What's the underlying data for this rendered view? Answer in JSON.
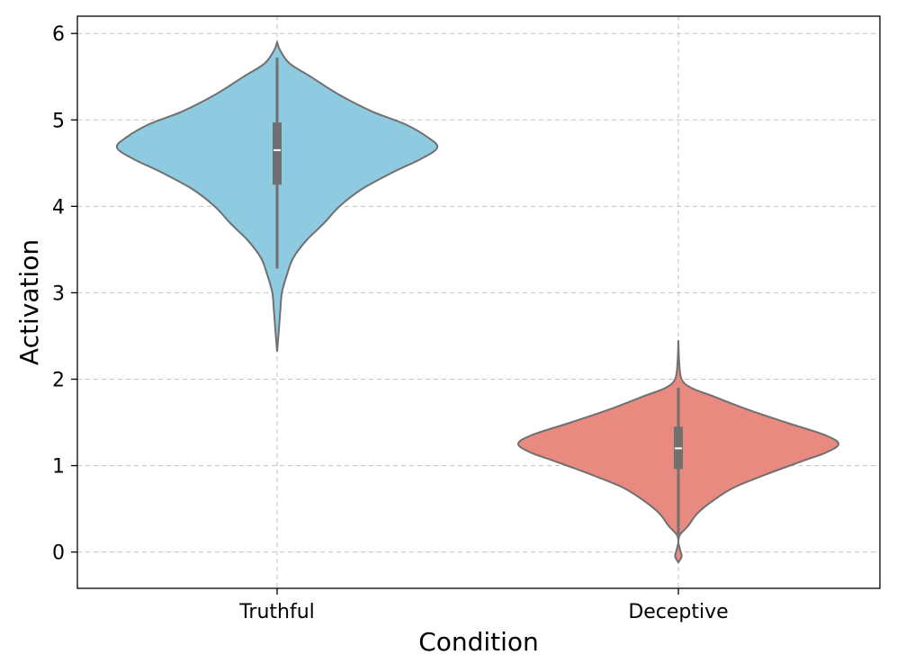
{
  "chart_data": {
    "type": "violin",
    "xlabel": "Condition",
    "ylabel": "Activation",
    "ylim": [
      -0.42,
      6.2
    ],
    "yticks": [
      0,
      1,
      2,
      3,
      4,
      5,
      6
    ],
    "grid": true,
    "categories": [
      "Truthful",
      "Deceptive"
    ],
    "violins": [
      {
        "category": "Truthful",
        "color": "#8ecae0",
        "median": 4.65,
        "q1": 4.25,
        "q3": 4.97,
        "whisker_low": 3.28,
        "whisker_high": 5.72,
        "min": 2.32,
        "max": 5.9,
        "density_profile": [
          [
            2.32,
            0.0
          ],
          [
            2.55,
            0.01
          ],
          [
            2.8,
            0.02
          ],
          [
            3.0,
            0.03
          ],
          [
            3.2,
            0.06
          ],
          [
            3.4,
            0.1
          ],
          [
            3.6,
            0.18
          ],
          [
            3.8,
            0.29
          ],
          [
            4.0,
            0.39
          ],
          [
            4.2,
            0.53
          ],
          [
            4.4,
            0.73
          ],
          [
            4.55,
            0.9
          ],
          [
            4.68,
            1.0
          ],
          [
            4.8,
            0.94
          ],
          [
            4.95,
            0.8
          ],
          [
            5.1,
            0.59
          ],
          [
            5.3,
            0.38
          ],
          [
            5.5,
            0.21
          ],
          [
            5.65,
            0.08
          ],
          [
            5.8,
            0.02
          ],
          [
            5.9,
            0.0
          ]
        ]
      },
      {
        "category": "Deceptive",
        "color": "#e88a80",
        "median": 1.2,
        "q1": 0.96,
        "q3": 1.45,
        "whisker_low": 0.2,
        "whisker_high": 1.9,
        "min": -0.12,
        "max": 2.45,
        "density_profile": [
          [
            -0.12,
            0.0
          ],
          [
            -0.05,
            0.02
          ],
          [
            0.03,
            0.01
          ],
          [
            0.12,
            0.0
          ],
          [
            0.2,
            0.01
          ],
          [
            0.3,
            0.06
          ],
          [
            0.45,
            0.12
          ],
          [
            0.6,
            0.22
          ],
          [
            0.75,
            0.35
          ],
          [
            0.9,
            0.55
          ],
          [
            1.05,
            0.77
          ],
          [
            1.15,
            0.92
          ],
          [
            1.25,
            1.0
          ],
          [
            1.35,
            0.92
          ],
          [
            1.5,
            0.67
          ],
          [
            1.65,
            0.43
          ],
          [
            1.8,
            0.22
          ],
          [
            1.9,
            0.08
          ],
          [
            2.0,
            0.02
          ],
          [
            2.2,
            0.005
          ],
          [
            2.45,
            0.0
          ]
        ]
      }
    ]
  }
}
